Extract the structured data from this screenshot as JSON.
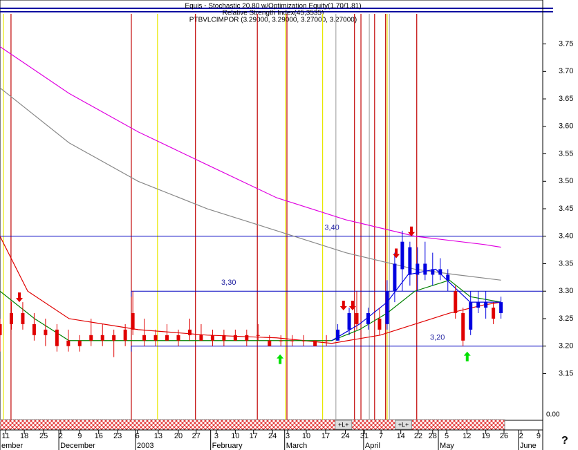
{
  "chart_data": {
    "type": "candlestick",
    "header": [
      "Equis - Stochastic 20,80 w/Optimization Equity(1,70/1,81)",
      "Relative Strength Index(45,3535)",
      "PTBVLCIMPOR (3.29000, 3.29000, 3.27000, 3.27000)"
    ],
    "xlim": [
      0,
      143
    ],
    "ylim": [
      3.065,
      3.83
    ],
    "yticks": [
      3.15,
      {
        "value": 3.2,
        "label": "3.20"
      },
      3.25,
      {
        "value": 3.3,
        "label": "3.30"
      },
      3.35,
      {
        "value": 3.4,
        "label": "3.40"
      },
      3.45,
      {
        "value": 3.5,
        "label": "3.50"
      },
      3.55,
      {
        "value": 3.6,
        "label": "3.60"
      },
      3.65,
      {
        "value": 3.7,
        "label": "3.70"
      },
      3.75
    ],
    "xticks": [
      {
        "value": 1.5,
        "label": "11"
      },
      {
        "value": 6.4,
        "label": "18"
      },
      {
        "value": 11.5,
        "label": "25"
      },
      {
        "value": 16,
        "label": "2"
      },
      {
        "value": 21,
        "label": "9"
      },
      {
        "value": 26,
        "label": "16"
      },
      {
        "value": 31,
        "label": "23"
      },
      {
        "value": 36.2,
        "label": "6"
      },
      {
        "value": 41.7,
        "label": "13"
      },
      {
        "value": 47,
        "label": "20"
      },
      {
        "value": 51.7,
        "label": "27"
      },
      {
        "value": 57,
        "label": "3"
      },
      {
        "value": 62,
        "label": "10"
      },
      {
        "value": 66.8,
        "label": "17"
      },
      {
        "value": 71.8,
        "label": "24"
      },
      {
        "value": 75.8,
        "label": "3"
      },
      {
        "value": 80.7,
        "label": "10"
      },
      {
        "value": 85.8,
        "label": "17"
      },
      {
        "value": 91,
        "label": "24"
      },
      {
        "value": 96,
        "label": "31"
      },
      {
        "value": 100.4,
        "label": "7"
      },
      {
        "value": 105.6,
        "label": "14"
      },
      {
        "value": 110.2,
        "label": "22"
      },
      {
        "value": 114,
        "label": "28"
      },
      {
        "value": 117.7,
        "label": "5"
      },
      {
        "value": 123,
        "label": "12"
      },
      {
        "value": 128,
        "label": "19"
      },
      {
        "value": 132.8,
        "label": "26"
      },
      {
        "value": 137.3,
        "label": "2"
      },
      {
        "value": 141.9,
        "label": "9"
      }
    ],
    "months": [
      {
        "value": 0,
        "label": "ember"
      },
      {
        "value": 15.5,
        "label": "December"
      },
      {
        "value": 35.7,
        "label": "2003"
      },
      {
        "value": 55.5,
        "label": "February"
      },
      {
        "value": 75,
        "label": "March"
      },
      {
        "value": 95.8,
        "label": "April"
      },
      {
        "value": 115.5,
        "label": "May"
      },
      {
        "value": 136.6,
        "label": "June"
      }
    ],
    "candles": {
      "x": [
        0,
        3,
        6,
        9,
        12,
        15,
        18,
        21,
        24,
        27,
        30,
        33,
        35,
        38,
        41,
        44,
        47,
        50,
        53,
        56,
        59,
        62,
        65,
        68,
        71,
        74,
        77,
        80,
        83,
        86,
        89,
        92,
        94,
        97,
        100,
        102,
        104,
        106,
        108,
        110,
        112,
        114,
        116,
        118,
        120,
        122,
        124,
        126,
        128,
        130,
        132
      ],
      "open": [
        3.22,
        3.24,
        3.26,
        3.24,
        3.22,
        3.23,
        3.21,
        3.2,
        3.21,
        3.21,
        3.22,
        3.21,
        3.23,
        3.22,
        3.21,
        3.22,
        3.21,
        3.22,
        3.22,
        3.21,
        3.21,
        3.22,
        3.21,
        3.22,
        3.21,
        3.21,
        3.21,
        3.21,
        3.2,
        3.21,
        3.21,
        3.23,
        3.26,
        3.24,
        3.25,
        3.24,
        3.3,
        3.34,
        3.38,
        3.33,
        3.35,
        3.33,
        3.34,
        3.33,
        3.3,
        3.26,
        3.23,
        3.28,
        3.27,
        3.27,
        3.26
      ],
      "high": [
        3.25,
        3.28,
        3.28,
        3.26,
        3.25,
        3.24,
        3.23,
        3.22,
        3.25,
        3.24,
        3.23,
        3.24,
        3.3,
        3.25,
        3.23,
        3.24,
        3.23,
        3.25,
        3.24,
        3.23,
        3.23,
        3.23,
        3.23,
        3.24,
        3.22,
        3.22,
        3.22,
        3.22,
        3.21,
        3.22,
        3.24,
        3.27,
        3.3,
        3.27,
        3.27,
        3.32,
        3.37,
        3.41,
        3.39,
        3.38,
        3.39,
        3.37,
        3.36,
        3.34,
        3.31,
        3.27,
        3.3,
        3.3,
        3.3,
        3.28,
        3.29
      ],
      "low": [
        3.19,
        3.23,
        3.23,
        3.21,
        3.2,
        3.19,
        3.19,
        3.19,
        3.2,
        3.2,
        3.18,
        3.2,
        3.22,
        3.2,
        3.2,
        3.21,
        3.2,
        3.21,
        3.21,
        3.2,
        3.2,
        3.21,
        3.2,
        3.21,
        3.2,
        3.2,
        3.2,
        3.2,
        3.2,
        3.2,
        3.21,
        3.22,
        3.23,
        3.23,
        3.22,
        3.23,
        3.28,
        3.3,
        3.31,
        3.3,
        3.32,
        3.31,
        3.32,
        3.3,
        3.25,
        3.2,
        3.22,
        3.26,
        3.25,
        3.24,
        3.25
      ],
      "close": [
        3.24,
        3.26,
        3.24,
        3.22,
        3.23,
        3.2,
        3.2,
        3.21,
        3.22,
        3.22,
        3.21,
        3.23,
        3.26,
        3.21,
        3.22,
        3.21,
        3.22,
        3.23,
        3.21,
        3.22,
        3.22,
        3.21,
        3.22,
        3.22,
        3.2,
        3.21,
        3.21,
        3.21,
        3.21,
        3.21,
        3.23,
        3.26,
        3.24,
        3.26,
        3.23,
        3.3,
        3.35,
        3.39,
        3.33,
        3.35,
        3.33,
        3.34,
        3.33,
        3.32,
        3.26,
        3.21,
        3.28,
        3.27,
        3.28,
        3.25,
        3.28
      ],
      "colors": [
        "#e00000",
        "#e00000",
        "#e00000",
        "#e00000",
        "#e00000",
        "#e00000",
        "#e00000",
        "#e00000",
        "#e00000",
        "#e00000",
        "#e00000",
        "#e00000",
        "#e00000",
        "#e00000",
        "#e00000",
        "#e00000",
        "#e00000",
        "#e00000",
        "#e00000",
        "#e00000",
        "#e00000",
        "#e00000",
        "#e00000",
        "#e00000",
        "#e00000",
        "#e00000",
        "#e00000",
        "#e00000",
        "#e00000",
        "#e00000",
        "#0000e0",
        "#0000e0",
        "#e00000",
        "#0000e0",
        "#e00000",
        "#0000e0",
        "#0000e0",
        "#0000e0",
        "#0000e0",
        "#0000e0",
        "#0000e0",
        "#0000e0",
        "#0000e0",
        "#0000e0",
        "#e00000",
        "#e00000",
        "#0000e0",
        "#0000e0",
        "#0000e0",
        "#e00000",
        "#0000e0"
      ]
    },
    "series": [
      {
        "color": "#e000e0",
        "x": [
          0,
          18.2,
          36.4,
          54.6,
          72.9,
          91.1,
          109.3,
          127.5,
          132
        ],
        "values": [
          3.745,
          3.66,
          3.59,
          3.53,
          3.47,
          3.43,
          3.4,
          3.385,
          3.38
        ]
      },
      {
        "color": "#888888",
        "x": [
          0,
          18.2,
          36.4,
          54.6,
          72.9,
          91.1,
          109.3,
          120.2,
          132
        ],
        "values": [
          3.67,
          3.57,
          3.5,
          3.45,
          3.41,
          3.37,
          3.34,
          3.33,
          3.32
        ]
      },
      {
        "color": "#e00000",
        "x": [
          0,
          7.3,
          18.2,
          36.4,
          54.6,
          72.9,
          87.4,
          100.2,
          109.3,
          118.4,
          127.5,
          132
        ],
        "values": [
          3.4,
          3.3,
          3.25,
          3.23,
          3.22,
          3.215,
          3.205,
          3.22,
          3.24,
          3.26,
          3.275,
          3.28
        ]
      },
      {
        "color": "#008000",
        "x": [
          0,
          9.1,
          18.2,
          36.4,
          54.6,
          87.4,
          94.7,
          102,
          109.3,
          118.4,
          123.9,
          132
        ],
        "values": [
          3.3,
          3.25,
          3.21,
          3.21,
          3.21,
          3.21,
          3.23,
          3.26,
          3.3,
          3.32,
          3.29,
          3.28
        ]
      },
      {
        "color": "#0000e0",
        "x": [
          87.4,
          94.7,
          102,
          107.5,
          114.8,
          119.3,
          123.9,
          132
        ],
        "values": [
          3.21,
          3.24,
          3.28,
          3.33,
          3.34,
          3.31,
          3.28,
          3.28
        ]
      }
    ],
    "levels": [
      {
        "value": 3.4,
        "start": 0,
        "label": "3,40",
        "label_x": 85.5
      },
      {
        "value": 3.3,
        "start": 34.6,
        "label": "3,30",
        "label_x": 58.3
      },
      {
        "value": 3.2,
        "start": 34.6,
        "label": "3,20",
        "label_x": 113.3
      }
    ],
    "signal_lines": [
      {
        "x": 0.9,
        "color": "#e8e800"
      },
      {
        "x": 2.9,
        "color": "#c00000"
      },
      {
        "x": 34.6,
        "color": "#c00000"
      },
      {
        "x": 41.5,
        "color": "#e8e800"
      },
      {
        "x": 51.5,
        "color": "#c00000"
      },
      {
        "x": 67.8,
        "color": "#c00000"
      },
      {
        "x": 75.2,
        "color": "#e8e800"
      },
      {
        "x": 75.6,
        "color": "#c00000"
      },
      {
        "x": 85,
        "color": "#e8e800"
      },
      {
        "x": 88.5,
        "color": "#aaaaaa"
      },
      {
        "x": 93.4,
        "color": "#c00000"
      },
      {
        "x": 95.1,
        "color": "#c00000"
      },
      {
        "x": 97.3,
        "color": "#aaaaaa"
      },
      {
        "x": 98.7,
        "color": "#c00000"
      },
      {
        "x": 101.6,
        "color": "#c00000"
      },
      {
        "x": 102,
        "color": "#e8e800"
      },
      {
        "x": 102.6,
        "color": "#aaaaaa"
      },
      {
        "x": 109.8,
        "color": "#c00000"
      }
    ],
    "down_arrows": {
      "x": [
        5.1,
        90.5,
        92.9,
        104.4,
        108.4
      ],
      "values": [
        3.28,
        3.265,
        3.265,
        3.36,
        3.4
      ]
    },
    "up_arrows": {
      "x": [
        73.8,
        123.1
      ],
      "values": [
        3.185,
        3.19
      ]
    },
    "strip_labels": [
      {
        "value": 90.5,
        "label": "+L+"
      },
      {
        "value": 106.3,
        "label": "+L+"
      }
    ],
    "right_bottom_label": "0.00",
    "corner_label": "?"
  }
}
